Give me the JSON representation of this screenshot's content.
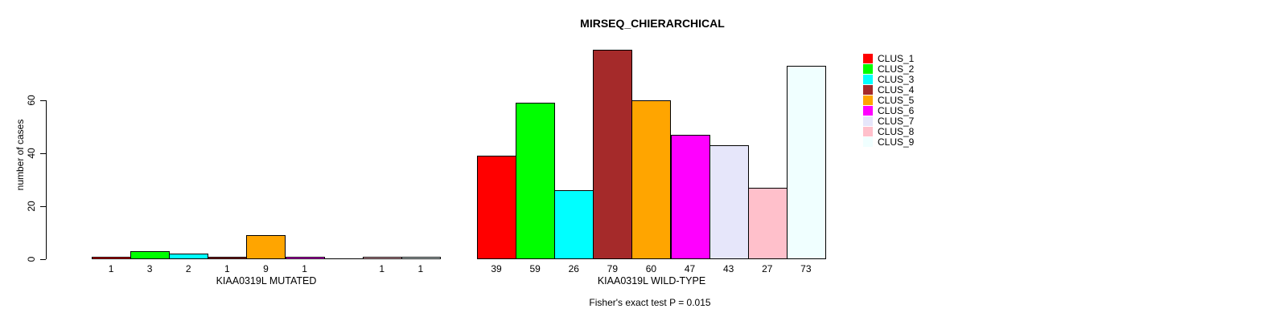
{
  "chart_data": {
    "type": "bar",
    "title": "MIRSEQ_CHIERARCHICAL",
    "ylabel": "number of cases",
    "yticks": [
      "0",
      "20",
      "40",
      "60"
    ],
    "ylim": [
      0,
      79
    ],
    "grid": false,
    "legend_position": "top-right",
    "annotation": "Fisher's exact test P = 0.015",
    "categories": [
      "KIAA0319L MUTATED",
      "KIAA0319L WILD-TYPE"
    ],
    "series": [
      {
        "name": "CLUS_1",
        "color": "#ff0000",
        "values": [
          1,
          39
        ]
      },
      {
        "name": "CLUS_2",
        "color": "#00ff00",
        "values": [
          3,
          59
        ]
      },
      {
        "name": "CLUS_3",
        "color": "#00ffff",
        "values": [
          2,
          26
        ]
      },
      {
        "name": "CLUS_4",
        "color": "#a52a2a",
        "values": [
          1,
          79
        ]
      },
      {
        "name": "CLUS_5",
        "color": "#ffa500",
        "values": [
          9,
          60
        ]
      },
      {
        "name": "CLUS_6",
        "color": "#ff00ff",
        "values": [
          1,
          47
        ]
      },
      {
        "name": "CLUS_7",
        "color": "#e6e6fa",
        "values": [
          0,
          43
        ]
      },
      {
        "name": "CLUS_8",
        "color": "#ffc0cb",
        "values": [
          1,
          27
        ]
      },
      {
        "name": "CLUS_9",
        "color": "#f0ffff",
        "values": [
          1,
          73
        ]
      }
    ]
  }
}
